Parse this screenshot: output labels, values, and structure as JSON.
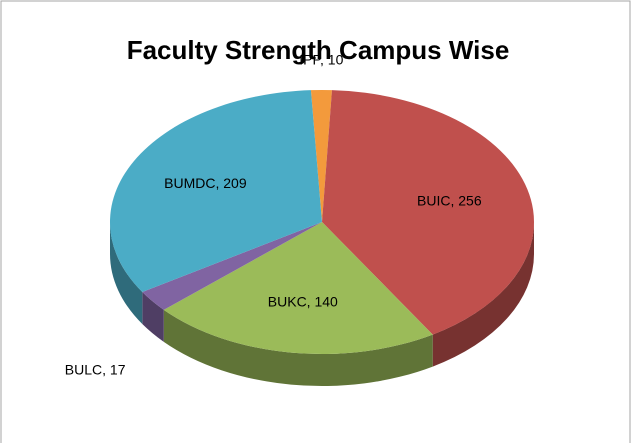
{
  "chart_data": {
    "type": "pie",
    "title": "Faculty Strength Campus Wise",
    "values": [
      10,
      256,
      140,
      17,
      209
    ],
    "value_labels": [
      "IPP, 10",
      "BUIC, 256",
      "BUKC, 140",
      "BULC, 17",
      "BUMDC, 209"
    ],
    "colors": [
      "#f39a3c",
      "#c0504d",
      "#9bbb59",
      "#8064a2",
      "#4bacc6"
    ]
  }
}
